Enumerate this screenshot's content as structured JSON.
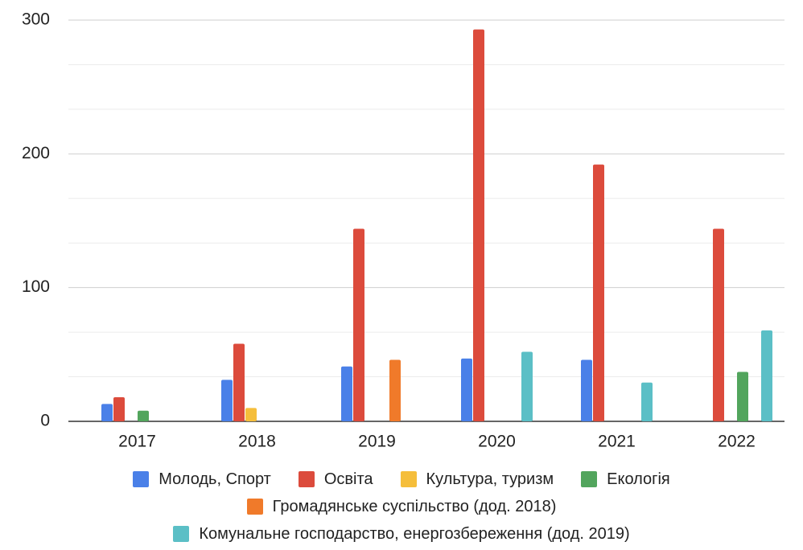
{
  "chart_data": {
    "type": "bar",
    "categories": [
      "2017",
      "2018",
      "2019",
      "2020",
      "2021",
      "2022"
    ],
    "series": [
      {
        "name": "Молодь, Спорт",
        "color": "#4a80e8",
        "values": [
          13,
          31,
          41,
          47,
          46,
          null
        ]
      },
      {
        "name": "Освіта",
        "color": "#dc4b3c",
        "values": [
          18,
          58,
          144,
          293,
          192,
          144
        ]
      },
      {
        "name": "Культура, туризм",
        "color": "#f5be3b",
        "values": [
          null,
          10,
          null,
          null,
          null,
          null
        ]
      },
      {
        "name": "Екологія",
        "color": "#52a55d",
        "values": [
          8,
          null,
          null,
          null,
          null,
          37
        ]
      },
      {
        "name": "Громадянське суспільство (дод. 2018)",
        "color": "#f07a2a",
        "values": [
          null,
          null,
          46,
          null,
          null,
          null
        ]
      },
      {
        "name": "Комунальне господарство, енергозбереження (дод. 2019)",
        "color": "#5bbfc6",
        "values": [
          null,
          null,
          null,
          52,
          29,
          68
        ]
      }
    ],
    "ylim": [
      0,
      300
    ],
    "yticks": [
      0,
      100,
      200,
      300
    ],
    "grid": true
  }
}
